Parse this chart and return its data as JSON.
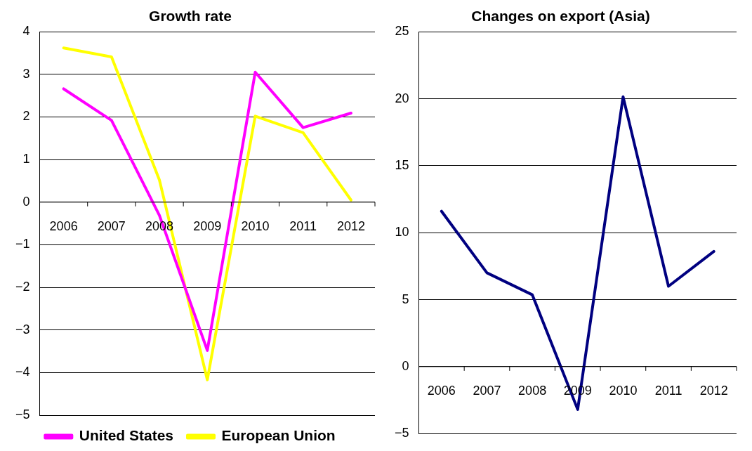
{
  "chart_data": [
    {
      "type": "line",
      "title": "Growth rate",
      "categories": [
        "2006",
        "2007",
        "2008",
        "2009",
        "2010",
        "2011",
        "2012"
      ],
      "series": [
        {
          "name": "United States",
          "color": "#ff00ff",
          "values": [
            2.66,
            1.92,
            -0.31,
            -3.48,
            3.05,
            1.75,
            2.09
          ]
        },
        {
          "name": "European Union",
          "color": "#ffff00",
          "values": [
            3.62,
            3.41,
            0.52,
            -4.17,
            2.02,
            1.63,
            0.05
          ]
        }
      ],
      "ylim": [
        -5,
        4
      ],
      "yticks": [
        {
          "value": -5,
          "label": "−5"
        },
        {
          "value": -4,
          "label": "−4"
        },
        {
          "value": -3,
          "label": "−3"
        },
        {
          "value": -2,
          "label": "−2"
        },
        {
          "value": -1,
          "label": "−1"
        },
        0,
        1,
        2,
        3,
        4
      ],
      "grid": "y",
      "legend": "bottom",
      "marker": "none",
      "line_style": "solid"
    },
    {
      "type": "line",
      "title": "Changes on export (Asia)",
      "categories": [
        "2006",
        "2007",
        "2008",
        "2009",
        "2010",
        "2011",
        "2012"
      ],
      "series": [
        {
          "color": "#000080",
          "values": [
            11.6,
            7.0,
            5.36,
            -3.2,
            20.15,
            6.0,
            8.6
          ]
        }
      ],
      "ylim": [
        -5,
        25
      ],
      "yticks": [
        {
          "value": -5,
          "label": "−5"
        },
        0,
        5,
        10,
        15,
        20,
        25
      ],
      "grid": "y",
      "legend": false,
      "marker": "none",
      "line_style": "solid"
    }
  ]
}
